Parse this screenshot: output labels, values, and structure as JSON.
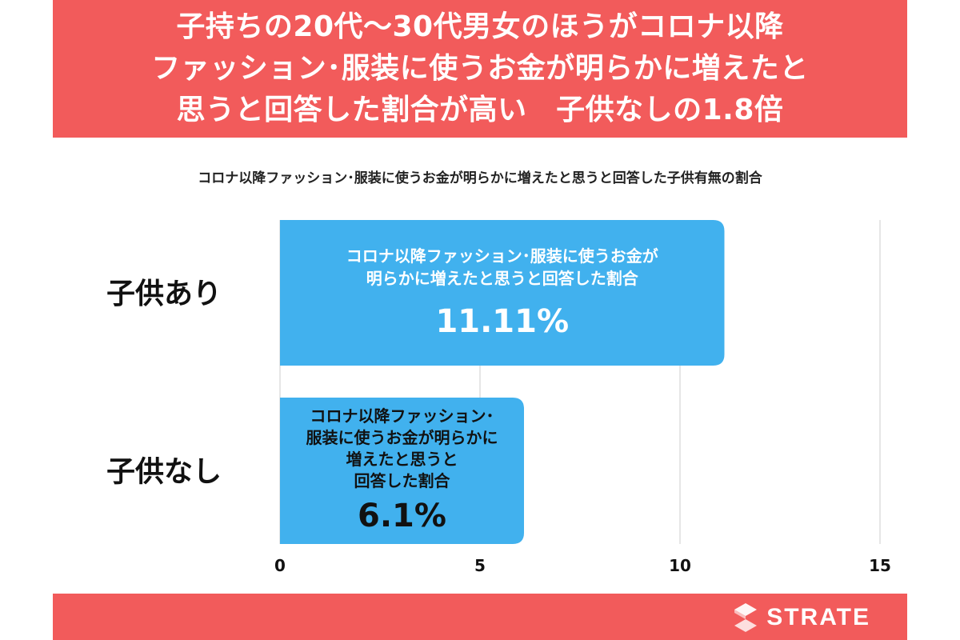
{
  "header": {
    "lines": [
      "子持ちの20代〜30代男女のほうがコロナ以降",
      "ファッション･服装に使うお金が明らかに増えたと",
      "思うと回答した割合が高い　子供なしの1.8倍"
    ]
  },
  "chart_data": {
    "type": "bar",
    "orientation": "horizontal",
    "title": "コロナ以降ファッション･服装に使うお金が明らかに増えたと思うと回答した子供有無の割合",
    "categories": [
      "子供あり",
      "子供なし"
    ],
    "values": [
      11.11,
      6.1
    ],
    "value_labels": [
      "11.11%",
      "6.1%"
    ],
    "bar_captions": [
      [
        "コロナ以降ファッション･服装に使うお金が",
        "明らかに増えたと思うと回答した割合"
      ],
      [
        "コロナ以降ファッション･",
        "服装に使うお金が明らかに",
        "増えたと思うと",
        "回答した割合"
      ]
    ],
    "xlim": [
      0,
      15
    ],
    "xticks": [
      0,
      5,
      10,
      15
    ],
    "grid": true,
    "bar_color": "#41b1ee"
  },
  "brand": {
    "name": "STRATE",
    "colors": {
      "accent": "#f25b5b",
      "bar": "#41b1ee"
    }
  }
}
